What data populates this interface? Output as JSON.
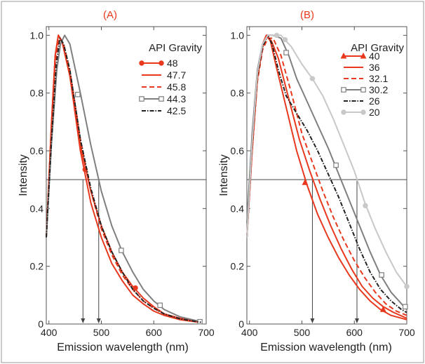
{
  "chart_data": [
    {
      "panel_label": "(A)",
      "type": "line",
      "xlabel": "Emission wavelength (nm)",
      "ylabel": "Intensity",
      "xlim": [
        395,
        700
      ],
      "ylim": [
        0,
        1.03
      ],
      "x_ticks": [
        400,
        500,
        600,
        700
      ],
      "x_tick_labels": [
        "400",
        "500",
        "600",
        "700"
      ],
      "y_ticks": [
        0,
        0.2,
        0.4,
        0.6,
        0.8,
        1.0
      ],
      "y_tick_labels": [
        "0",
        "0.2",
        "0.4",
        "0.6",
        "0.8",
        "1.0"
      ],
      "grid": false,
      "legend_title": "API Gravity",
      "legend_position": "top-right",
      "half_max_line": 0.5,
      "drop_lines_x": [
        465,
        495
      ],
      "series": [
        {
          "name": "48",
          "color": "#e8381e",
          "style": "line-marker",
          "marker": "filled-circle",
          "points": [
            [
              395,
              0.3
            ],
            [
              405,
              0.7
            ],
            [
              412,
              0.93
            ],
            [
              418,
              1.0
            ],
            [
              425,
              0.98
            ],
            [
              440,
              0.86
            ],
            [
              460,
              0.62
            ],
            [
              480,
              0.46
            ],
            [
              500,
              0.34
            ],
            [
              520,
              0.25
            ],
            [
              540,
              0.18
            ],
            [
              560,
              0.13
            ],
            [
              580,
              0.09
            ],
            [
              600,
              0.06
            ],
            [
              620,
              0.035
            ],
            [
              650,
              0.02
            ],
            [
              690,
              0.008
            ]
          ],
          "markers": [
            [
              469,
              0.535
            ],
            [
              565,
              0.125
            ]
          ]
        },
        {
          "name": "47.7",
          "color": "#e8381e",
          "style": "solid",
          "points": [
            [
              395,
              0.3
            ],
            [
              405,
              0.7
            ],
            [
              412,
              0.93
            ],
            [
              418,
              1.0
            ],
            [
              425,
              0.98
            ],
            [
              440,
              0.86
            ],
            [
              460,
              0.6
            ],
            [
              480,
              0.42
            ],
            [
              500,
              0.3
            ],
            [
              520,
              0.21
            ],
            [
              540,
              0.15
            ],
            [
              560,
              0.1
            ],
            [
              580,
              0.07
            ],
            [
              600,
              0.045
            ],
            [
              620,
              0.03
            ],
            [
              650,
              0.015
            ],
            [
              690,
              0.005
            ]
          ]
        },
        {
          "name": "45.8",
          "color": "#e8381e",
          "style": "dashed",
          "points": [
            [
              395,
              0.3
            ],
            [
              405,
              0.68
            ],
            [
              413,
              0.92
            ],
            [
              420,
              0.99
            ],
            [
              428,
              0.97
            ],
            [
              440,
              0.88
            ],
            [
              460,
              0.64
            ],
            [
              480,
              0.46
            ],
            [
              500,
              0.33
            ],
            [
              520,
              0.24
            ],
            [
              540,
              0.17
            ],
            [
              560,
              0.12
            ],
            [
              580,
              0.08
            ],
            [
              600,
              0.055
            ],
            [
              620,
              0.035
            ],
            [
              650,
              0.018
            ],
            [
              690,
              0.006
            ]
          ]
        },
        {
          "name": "44.3",
          "color": "#7f7f7f",
          "style": "line-marker",
          "marker": "open-square",
          "points": [
            [
              395,
              0.3
            ],
            [
              405,
              0.63
            ],
            [
              415,
              0.88
            ],
            [
              422,
              0.97
            ],
            [
              430,
              1.0
            ],
            [
              440,
              0.97
            ],
            [
              460,
              0.8
            ],
            [
              480,
              0.62
            ],
            [
              500,
              0.46
            ],
            [
              520,
              0.34
            ],
            [
              540,
              0.25
            ],
            [
              560,
              0.18
            ],
            [
              580,
              0.12
            ],
            [
              600,
              0.08
            ],
            [
              620,
              0.05
            ],
            [
              650,
              0.025
            ],
            [
              690,
              0.008
            ]
          ],
          "markers": [
            [
              455,
              0.795
            ],
            [
              538,
              0.255
            ],
            [
              612,
              0.065
            ],
            [
              688,
              0.008
            ]
          ]
        },
        {
          "name": "42.5",
          "color": "#222222",
          "style": "dash-dot",
          "points": [
            [
              395,
              0.3
            ],
            [
              405,
              0.64
            ],
            [
              414,
              0.9
            ],
            [
              421,
              0.99
            ],
            [
              428,
              0.97
            ],
            [
              440,
              0.88
            ],
            [
              460,
              0.64
            ],
            [
              480,
              0.47
            ],
            [
              500,
              0.34
            ],
            [
              520,
              0.25
            ],
            [
              540,
              0.18
            ],
            [
              560,
              0.12
            ],
            [
              580,
              0.08
            ],
            [
              600,
              0.055
            ],
            [
              620,
              0.035
            ],
            [
              650,
              0.018
            ],
            [
              690,
              0.006
            ]
          ]
        }
      ]
    },
    {
      "panel_label": "(B)",
      "type": "line",
      "xlabel": "Emission wavelength (nm)",
      "ylabel": "Intensity",
      "xlim": [
        395,
        700
      ],
      "ylim": [
        0,
        1.03
      ],
      "x_ticks": [
        400,
        500,
        600,
        700
      ],
      "x_tick_labels": [
        "400",
        "500",
        "600",
        "700"
      ],
      "y_ticks": [
        0,
        0.2,
        0.4,
        0.6,
        0.8,
        1.0
      ],
      "y_tick_labels": [
        "0",
        "0.2",
        "0.4",
        "0.6",
        "0.8",
        "1.0"
      ],
      "grid": false,
      "legend_title": "API Gravity",
      "legend_position": "top-right",
      "half_max_line": 0.5,
      "drop_lines_x": [
        520,
        605
      ],
      "series": [
        {
          "name": "40",
          "color": "#e8381e",
          "style": "line-marker",
          "marker": "filled-triangle",
          "points": [
            [
              395,
              0.3
            ],
            [
              405,
              0.6
            ],
            [
              415,
              0.85
            ],
            [
              425,
              0.97
            ],
            [
              432,
              1.0
            ],
            [
              440,
              0.98
            ],
            [
              450,
              0.9
            ],
            [
              470,
              0.75
            ],
            [
              490,
              0.6
            ],
            [
              510,
              0.48
            ],
            [
              530,
              0.38
            ],
            [
              550,
              0.3
            ],
            [
              570,
              0.23
            ],
            [
              590,
              0.17
            ],
            [
              610,
              0.12
            ],
            [
              630,
              0.08
            ],
            [
              650,
              0.05
            ],
            [
              670,
              0.03
            ],
            [
              700,
              0.015
            ]
          ],
          "markers": [
            [
              506,
              0.49
            ],
            [
              655,
              0.05
            ]
          ]
        },
        {
          "name": "36",
          "color": "#e8381e",
          "style": "solid",
          "points": [
            [
              395,
              0.3
            ],
            [
              405,
              0.6
            ],
            [
              415,
              0.85
            ],
            [
              425,
              0.96
            ],
            [
              433,
              1.0
            ],
            [
              442,
              0.98
            ],
            [
              455,
              0.92
            ],
            [
              475,
              0.78
            ],
            [
              495,
              0.64
            ],
            [
              515,
              0.53
            ],
            [
              535,
              0.43
            ],
            [
              555,
              0.34
            ],
            [
              575,
              0.26
            ],
            [
              595,
              0.19
            ],
            [
              615,
              0.13
            ],
            [
              635,
              0.09
            ],
            [
              655,
              0.06
            ],
            [
              675,
              0.04
            ],
            [
              700,
              0.02
            ]
          ]
        },
        {
          "name": "32.1",
          "color": "#e8381e",
          "style": "dashed",
          "points": [
            [
              395,
              0.3
            ],
            [
              405,
              0.6
            ],
            [
              415,
              0.84
            ],
            [
              425,
              0.95
            ],
            [
              435,
              0.99
            ],
            [
              445,
              0.99
            ],
            [
              460,
              0.93
            ],
            [
              480,
              0.8
            ],
            [
              500,
              0.66
            ],
            [
              520,
              0.56
            ],
            [
              540,
              0.46
            ],
            [
              560,
              0.37
            ],
            [
              580,
              0.29
            ],
            [
              600,
              0.22
            ],
            [
              620,
              0.16
            ],
            [
              640,
              0.11
            ],
            [
              660,
              0.07
            ],
            [
              680,
              0.045
            ],
            [
              700,
              0.03
            ]
          ]
        },
        {
          "name": "30.2",
          "color": "#7f7f7f",
          "style": "line-marker",
          "marker": "open-square",
          "points": [
            [
              395,
              0.35
            ],
            [
              405,
              0.66
            ],
            [
              415,
              0.88
            ],
            [
              425,
              0.97
            ],
            [
              435,
              1.0
            ],
            [
              445,
              1.0
            ],
            [
              460,
              0.99
            ],
            [
              475,
              0.93
            ],
            [
              490,
              0.85
            ],
            [
              510,
              0.77
            ],
            [
              530,
              0.69
            ],
            [
              550,
              0.61
            ],
            [
              570,
              0.52
            ],
            [
              590,
              0.43
            ],
            [
              610,
              0.34
            ],
            [
              630,
              0.25
            ],
            [
              650,
              0.17
            ],
            [
              670,
              0.11
            ],
            [
              690,
              0.07
            ],
            [
              700,
              0.05
            ]
          ],
          "markers": [
            [
              470,
              0.94
            ],
            [
              565,
              0.55
            ],
            [
              652,
              0.17
            ],
            [
              697,
              0.06
            ]
          ]
        },
        {
          "name": "26",
          "color": "#222222",
          "style": "dash-dot",
          "points": [
            [
              395,
              0.3
            ],
            [
              405,
              0.62
            ],
            [
              415,
              0.86
            ],
            [
              425,
              0.96
            ],
            [
              435,
              1.0
            ],
            [
              443,
              0.97
            ],
            [
              455,
              0.88
            ],
            [
              470,
              0.79
            ],
            [
              490,
              0.73
            ],
            [
              510,
              0.67
            ],
            [
              530,
              0.6
            ],
            [
              550,
              0.52
            ],
            [
              570,
              0.44
            ],
            [
              590,
              0.35
            ],
            [
              610,
              0.26
            ],
            [
              630,
              0.18
            ],
            [
              650,
              0.12
            ],
            [
              670,
              0.08
            ],
            [
              690,
              0.05
            ],
            [
              700,
              0.04
            ]
          ]
        },
        {
          "name": "20",
          "color": "#c8c8c8",
          "style": "line-marker",
          "marker": "filled-circle",
          "points": [
            [
              395,
              0.3
            ],
            [
              405,
              0.63
            ],
            [
              415,
              0.87
            ],
            [
              425,
              0.97
            ],
            [
              435,
              1.0
            ],
            [
              445,
              1.0
            ],
            [
              460,
              1.0
            ],
            [
              480,
              0.96
            ],
            [
              500,
              0.9
            ],
            [
              520,
              0.85
            ],
            [
              540,
              0.79
            ],
            [
              560,
              0.71
            ],
            [
              580,
              0.62
            ],
            [
              600,
              0.53
            ],
            [
              620,
              0.42
            ],
            [
              640,
              0.33
            ],
            [
              660,
              0.25
            ],
            [
              680,
              0.18
            ],
            [
              700,
              0.13
            ]
          ],
          "markers": [
            [
              452,
              1.0
            ],
            [
              468,
              0.985
            ],
            [
              520,
              0.85
            ],
            [
              621,
              0.41
            ],
            [
              700,
              0.13
            ]
          ]
        }
      ]
    }
  ]
}
